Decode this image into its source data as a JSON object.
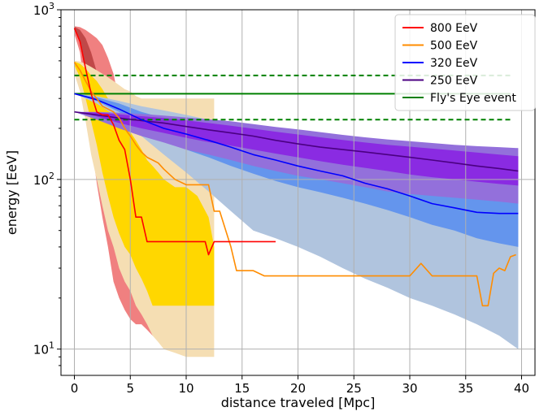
{
  "chart_data": {
    "type": "line",
    "title": "",
    "xlabel": "distance traveled [Mpc]",
    "ylabel": "energy [EeV]",
    "xlim": [
      -1.2,
      41.2
    ],
    "ylim": [
      7,
      1000
    ],
    "yscale": "log",
    "grid": true,
    "legend_position": "top-right",
    "x_ticks": [
      0,
      5,
      10,
      15,
      20,
      25,
      30,
      35,
      40
    ],
    "x_tick_labels": [
      "0",
      "5",
      "10",
      "15",
      "20",
      "25",
      "30",
      "35",
      "40"
    ],
    "y_ticks": [
      10,
      100,
      1000
    ],
    "y_tick_labels": [
      {
        "base": "10",
        "exp": "1"
      },
      {
        "base": "10",
        "exp": "2"
      },
      {
        "base": "10",
        "exp": "3"
      }
    ],
    "series": [
      {
        "name": "800 EeV",
        "color": "#ff0000",
        "x": [
          0,
          0.5,
          1,
          1.5,
          2,
          2.5,
          3,
          3.5,
          4,
          4.5,
          5,
          5.5,
          6,
          6.5,
          7,
          8,
          9,
          10,
          11,
          11.7,
          12,
          12.5,
          13,
          14,
          14.5,
          15,
          15.5,
          16,
          17,
          18
        ],
        "values": [
          780,
          650,
          450,
          320,
          250,
          240,
          240,
          210,
          170,
          150,
          100,
          60,
          60,
          43,
          43,
          43,
          43,
          43,
          43,
          43,
          36,
          43,
          43,
          43,
          43,
          43,
          43,
          43,
          43,
          43
        ],
        "band_outer": {
          "lower": [
            720,
            560,
            300,
            170,
            95,
            60,
            40,
            25,
            20,
            17,
            15,
            14,
            14,
            13,
            12,
            12,
            12
          ],
          "upper": [
            800,
            790,
            760,
            720,
            680,
            620,
            520,
            420,
            290,
            220,
            150,
            100,
            80,
            50,
            45,
            35,
            30
          ]
        },
        "band_inner": {
          "lower": [
            760,
            640,
            420,
            280,
            190,
            140,
            90,
            60,
            45,
            40,
            35,
            30,
            28,
            26,
            25,
            25,
            25
          ],
          "upper": [
            795,
            760,
            680,
            560,
            430,
            330,
            260,
            210,
            180,
            130,
            90,
            70,
            55,
            46,
            43,
            40,
            38
          ]
        }
      },
      {
        "name": "500 EeV",
        "color": "#ff8c00",
        "x": [
          0,
          0.5,
          1,
          1.5,
          2,
          2.5,
          3,
          3.5,
          4,
          4.5,
          5,
          5.5,
          6,
          6.5,
          7,
          7.5,
          8,
          9,
          10,
          11,
          12,
          12.5,
          13,
          14,
          14.5,
          15,
          16,
          17,
          18,
          20,
          22,
          24,
          26,
          28,
          30,
          31,
          32,
          34,
          35,
          36,
          36.5,
          37,
          37.5,
          38,
          38.5,
          39,
          39.5
        ],
        "values": [
          490,
          440,
          380,
          330,
          300,
          270,
          260,
          250,
          230,
          200,
          180,
          160,
          145,
          135,
          130,
          125,
          115,
          100,
          93,
          93,
          93,
          65,
          65,
          40,
          29,
          29,
          29,
          27,
          27,
          27,
          27,
          27,
          27,
          27,
          27,
          32,
          27,
          27,
          27,
          27,
          18,
          18,
          28,
          30,
          29,
          35,
          36
        ],
        "band_outer": {
          "lower": [
            420,
            330,
            220,
            140,
            100,
            70,
            50,
            40,
            30,
            25,
            22,
            18,
            16,
            14,
            12,
            11,
            10,
            9.5,
            9,
            9,
            9,
            9
          ],
          "upper": [
            500,
            495,
            480,
            460,
            440,
            420,
            400,
            380,
            360,
            340,
            330,
            310,
            300,
            300,
            300,
            300,
            300,
            300,
            300,
            300,
            300,
            300
          ]
        },
        "band_inner": {
          "lower": [
            470,
            400,
            300,
            220,
            160,
            110,
            80,
            60,
            48,
            40,
            36,
            30,
            26,
            22,
            18,
            18,
            18,
            18,
            18,
            18,
            18,
            18
          ],
          "upper": [
            495,
            480,
            450,
            410,
            380,
            340,
            300,
            270,
            240,
            210,
            190,
            170,
            150,
            130,
            120,
            110,
            100,
            90,
            90,
            80,
            60,
            40
          ]
        }
      },
      {
        "name": "320 EeV",
        "color": "#0000ff",
        "x": [
          0,
          2,
          4,
          6,
          8,
          10,
          12,
          14,
          16,
          18,
          20,
          22,
          24,
          26,
          28,
          30,
          32,
          34,
          36,
          38,
          39.7
        ],
        "values": [
          320,
          295,
          260,
          225,
          200,
          185,
          170,
          155,
          140,
          130,
          120,
          112,
          105,
          95,
          88,
          80,
          72,
          68,
          64,
          63,
          63
        ],
        "band_outer": {
          "lower": [
            320,
            280,
            230,
            180,
            140,
            110,
            85,
            65,
            50,
            45,
            40,
            35,
            30,
            26,
            23,
            20,
            18,
            16,
            14,
            12,
            10
          ],
          "upper": [
            320,
            310,
            290,
            270,
            255,
            240,
            225,
            212,
            200,
            190,
            180,
            170,
            162,
            154,
            146,
            140,
            133,
            127,
            120,
            115,
            110
          ]
        },
        "band_inner": {
          "lower": [
            320,
            290,
            250,
            205,
            175,
            150,
            135,
            120,
            108,
            98,
            90,
            84,
            78,
            72,
            66,
            60,
            54,
            50,
            45,
            42,
            40
          ],
          "upper": [
            320,
            305,
            280,
            250,
            230,
            215,
            200,
            188,
            175,
            165,
            155,
            145,
            136,
            128,
            121,
            115,
            110,
            104,
            100,
            96,
            95
          ]
        }
      },
      {
        "name": "250 EeV",
        "color": "#4b0082",
        "x": [
          0,
          2,
          4,
          6,
          8,
          10,
          12,
          14,
          16,
          18,
          20,
          22,
          24,
          26,
          28,
          30,
          32,
          34,
          36,
          38,
          39.7
        ],
        "values": [
          250,
          240,
          230,
          222,
          215,
          205,
          196,
          188,
          180,
          170,
          162,
          155,
          150,
          145,
          140,
          135,
          130,
          125,
          120,
          116,
          112
        ],
        "band_outer": {
          "lower": [
            250,
            225,
            200,
            180,
            165,
            150,
            140,
            130,
            120,
            112,
            105,
            100,
            95,
            90,
            85,
            82,
            80,
            78,
            76,
            74,
            72
          ],
          "upper": [
            250,
            250,
            247,
            243,
            238,
            232,
            226,
            220,
            212,
            204,
            197,
            190,
            183,
            177,
            172,
            168,
            164,
            160,
            157,
            155,
            153
          ]
        },
        "band_inner": {
          "lower": [
            250,
            235,
            215,
            200,
            188,
            176,
            166,
            158,
            150,
            142,
            135,
            128,
            122,
            117,
            112,
            107,
            103,
            100,
            97,
            94,
            92
          ],
          "upper": [
            250,
            248,
            242,
            236,
            230,
            223,
            215,
            207,
            199,
            191,
            184,
            177,
            171,
            165,
            160,
            156,
            152,
            148,
            144,
            140,
            137
          ]
        }
      },
      {
        "name": "Fly's Eye event",
        "color": "#008000",
        "x_range": [
          0,
          39
        ],
        "value": 320,
        "lower": 225,
        "upper": 410
      }
    ]
  }
}
